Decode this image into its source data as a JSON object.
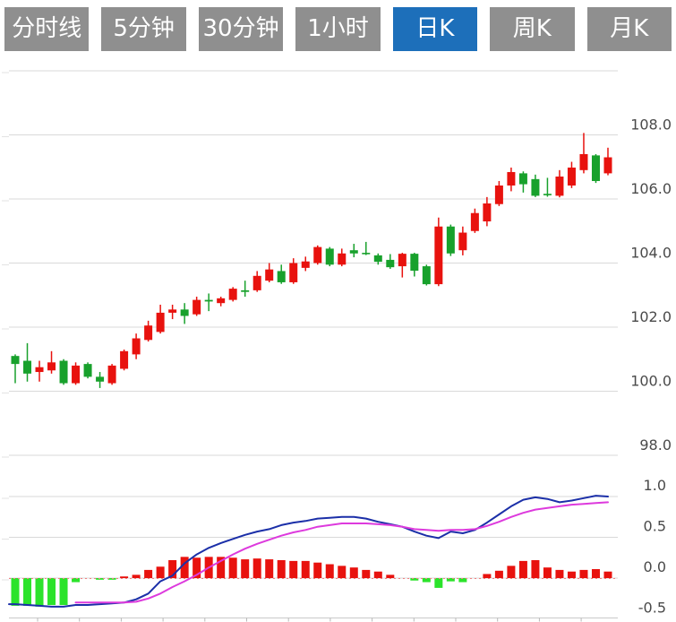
{
  "toolbar": {
    "buttons": [
      {
        "label": "分时线",
        "active": false
      },
      {
        "label": "5分钟",
        "active": false
      },
      {
        "label": "30分钟",
        "active": false
      },
      {
        "label": "1小时",
        "active": false
      },
      {
        "label": "日K",
        "active": true
      },
      {
        "label": "周K",
        "active": false
      },
      {
        "label": "月K",
        "active": false
      }
    ]
  },
  "colors": {
    "active_tab_bg": "#1d6fba",
    "inactive_tab_bg": "#8f8f8f",
    "tab_text": "#ffffff",
    "up": "#e8120e",
    "down": "#18a12c",
    "macd_up": "#e8120e",
    "macd_down": "#2be32b",
    "dif_line": "#1b2fa8",
    "dea_line": "#dd3add",
    "grid": "#d9d9d9",
    "axis_label": "#4a4a4a",
    "zero_line_dashed": "#f08080"
  },
  "chart_data": {
    "type": "candlestick",
    "panes": [
      {
        "name": "price",
        "y_ticks": [
          {
            "label": "108.0",
            "value": 108
          },
          {
            "label": "106.0",
            "value": 106
          },
          {
            "label": "104.0",
            "value": 104
          },
          {
            "label": "102.0",
            "value": 102
          },
          {
            "label": "100.0",
            "value": 100
          },
          {
            "label": "98.0",
            "value": 98
          }
        ],
        "grid_values": [
          110,
          108,
          106,
          104,
          102,
          100,
          98
        ],
        "y_range": [
          96.9,
          110.0
        ],
        "legend": "none",
        "grid": true
      },
      {
        "name": "macd",
        "y_ticks": [
          {
            "label": "1.0",
            "value": 1.0
          },
          {
            "label": "0.5",
            "value": 0.5
          },
          {
            "label": "0.0",
            "value": 0.0
          },
          {
            "label": "-0.5",
            "value": -0.5
          }
        ],
        "grid_values": [
          1.0,
          0.5,
          0.0
        ],
        "y_range": [
          -0.5,
          1.0
        ],
        "grid": true
      }
    ],
    "candles_ohlc": [
      [
        101.1,
        101.15,
        100.25,
        100.85
      ],
      [
        100.95,
        101.5,
        100.3,
        100.55
      ],
      [
        100.6,
        100.95,
        100.3,
        100.75
      ],
      [
        100.65,
        101.25,
        100.55,
        100.9
      ],
      [
        100.95,
        101.0,
        100.2,
        100.25
      ],
      [
        100.25,
        100.9,
        100.2,
        100.8
      ],
      [
        100.85,
        100.9,
        100.4,
        100.45
      ],
      [
        100.45,
        100.6,
        100.1,
        100.3
      ],
      [
        100.25,
        100.85,
        100.2,
        100.8
      ],
      [
        100.7,
        101.3,
        100.65,
        101.25
      ],
      [
        101.15,
        101.8,
        101.0,
        101.65
      ],
      [
        101.6,
        102.2,
        101.55,
        102.05
      ],
      [
        101.85,
        102.7,
        101.8,
        102.45
      ],
      [
        102.45,
        102.7,
        102.25,
        102.55
      ],
      [
        102.55,
        102.75,
        102.1,
        102.35
      ],
      [
        102.4,
        102.95,
        102.35,
        102.85
      ],
      [
        102.85,
        103.05,
        102.5,
        102.8
      ],
      [
        102.75,
        102.95,
        102.65,
        102.9
      ],
      [
        102.85,
        103.25,
        102.8,
        103.2
      ],
      [
        103.15,
        103.45,
        102.95,
        103.1
      ],
      [
        103.15,
        103.75,
        103.1,
        103.6
      ],
      [
        103.45,
        104.0,
        103.4,
        103.8
      ],
      [
        103.75,
        103.95,
        103.35,
        103.4
      ],
      [
        103.4,
        104.15,
        103.35,
        104.0
      ],
      [
        103.85,
        104.2,
        103.75,
        104.05
      ],
      [
        104.0,
        104.55,
        103.95,
        104.5
      ],
      [
        104.45,
        104.5,
        103.9,
        103.95
      ],
      [
        103.95,
        104.45,
        103.9,
        104.3
      ],
      [
        104.4,
        104.6,
        104.18,
        104.3
      ],
      [
        104.32,
        104.66,
        104.25,
        104.28
      ],
      [
        104.24,
        104.3,
        103.95,
        104.04
      ],
      [
        104.1,
        104.28,
        103.82,
        103.87
      ],
      [
        103.9,
        104.32,
        103.55,
        104.29
      ],
      [
        104.29,
        104.32,
        103.58,
        103.76
      ],
      [
        103.9,
        103.95,
        103.3,
        103.34
      ],
      [
        103.34,
        105.42,
        103.28,
        105.14
      ],
      [
        105.14,
        105.2,
        104.22,
        104.3
      ],
      [
        104.4,
        105.14,
        104.24,
        104.95
      ],
      [
        105.0,
        105.7,
        104.94,
        105.56
      ],
      [
        105.3,
        106.06,
        105.15,
        105.86
      ],
      [
        105.84,
        106.56,
        105.78,
        106.42
      ],
      [
        106.42,
        106.98,
        106.24,
        106.84
      ],
      [
        106.8,
        106.86,
        106.2,
        106.46
      ],
      [
        106.62,
        106.76,
        106.06,
        106.1
      ],
      [
        106.16,
        106.66,
        106.07,
        106.12
      ],
      [
        106.1,
        106.9,
        106.05,
        106.7
      ],
      [
        106.42,
        107.16,
        106.34,
        106.98
      ],
      [
        106.9,
        108.06,
        106.8,
        107.4
      ],
      [
        107.36,
        107.4,
        106.5,
        106.56
      ],
      [
        106.8,
        107.6,
        106.74,
        107.3
      ]
    ],
    "macd": {
      "histogram": [
        -0.34,
        -0.34,
        -0.35,
        -0.33,
        -0.33,
        -0.05,
        0,
        -0.02,
        -0.02,
        0.02,
        0.04,
        0.1,
        0.14,
        0.22,
        0.26,
        0.25,
        0.26,
        0.26,
        0.25,
        0.23,
        0.24,
        0.23,
        0.22,
        0.21,
        0.21,
        0.19,
        0.17,
        0.15,
        0.13,
        0.1,
        0.08,
        0.04,
        0,
        -0.03,
        -0.05,
        -0.12,
        -0.04,
        -0.05,
        0,
        0.05,
        0.09,
        0.15,
        0.21,
        0.22,
        0.13,
        0.1,
        0.08,
        0.1,
        0.11,
        0.08
      ],
      "dif": [
        -0.32,
        -0.33,
        -0.34,
        -0.35,
        -0.35,
        -0.33,
        -0.33,
        -0.32,
        -0.31,
        -0.3,
        -0.26,
        -0.19,
        -0.04,
        0.03,
        0.18,
        0.29,
        0.37,
        0.43,
        0.48,
        0.53,
        0.57,
        0.6,
        0.65,
        0.68,
        0.7,
        0.73,
        0.74,
        0.75,
        0.75,
        0.73,
        0.69,
        0.66,
        0.63,
        0.57,
        0.52,
        0.49,
        0.57,
        0.55,
        0.59,
        0.68,
        0.78,
        0.88,
        0.96,
        0.99,
        0.97,
        0.93,
        0.95,
        0.98,
        1.01,
        1.0
      ],
      "dea": [
        null,
        null,
        null,
        null,
        null,
        -0.3,
        -0.3,
        -0.3,
        -0.3,
        -0.3,
        -0.29,
        -0.25,
        -0.19,
        -0.11,
        -0.04,
        0.04,
        0.13,
        0.21,
        0.29,
        0.36,
        0.42,
        0.47,
        0.52,
        0.56,
        0.59,
        0.63,
        0.65,
        0.67,
        0.67,
        0.67,
        0.66,
        0.65,
        0.63,
        0.6,
        0.59,
        0.58,
        0.59,
        0.59,
        0.6,
        0.64,
        0.69,
        0.75,
        0.8,
        0.84,
        0.86,
        0.88,
        0.9,
        0.91,
        0.92,
        0.93
      ]
    }
  }
}
